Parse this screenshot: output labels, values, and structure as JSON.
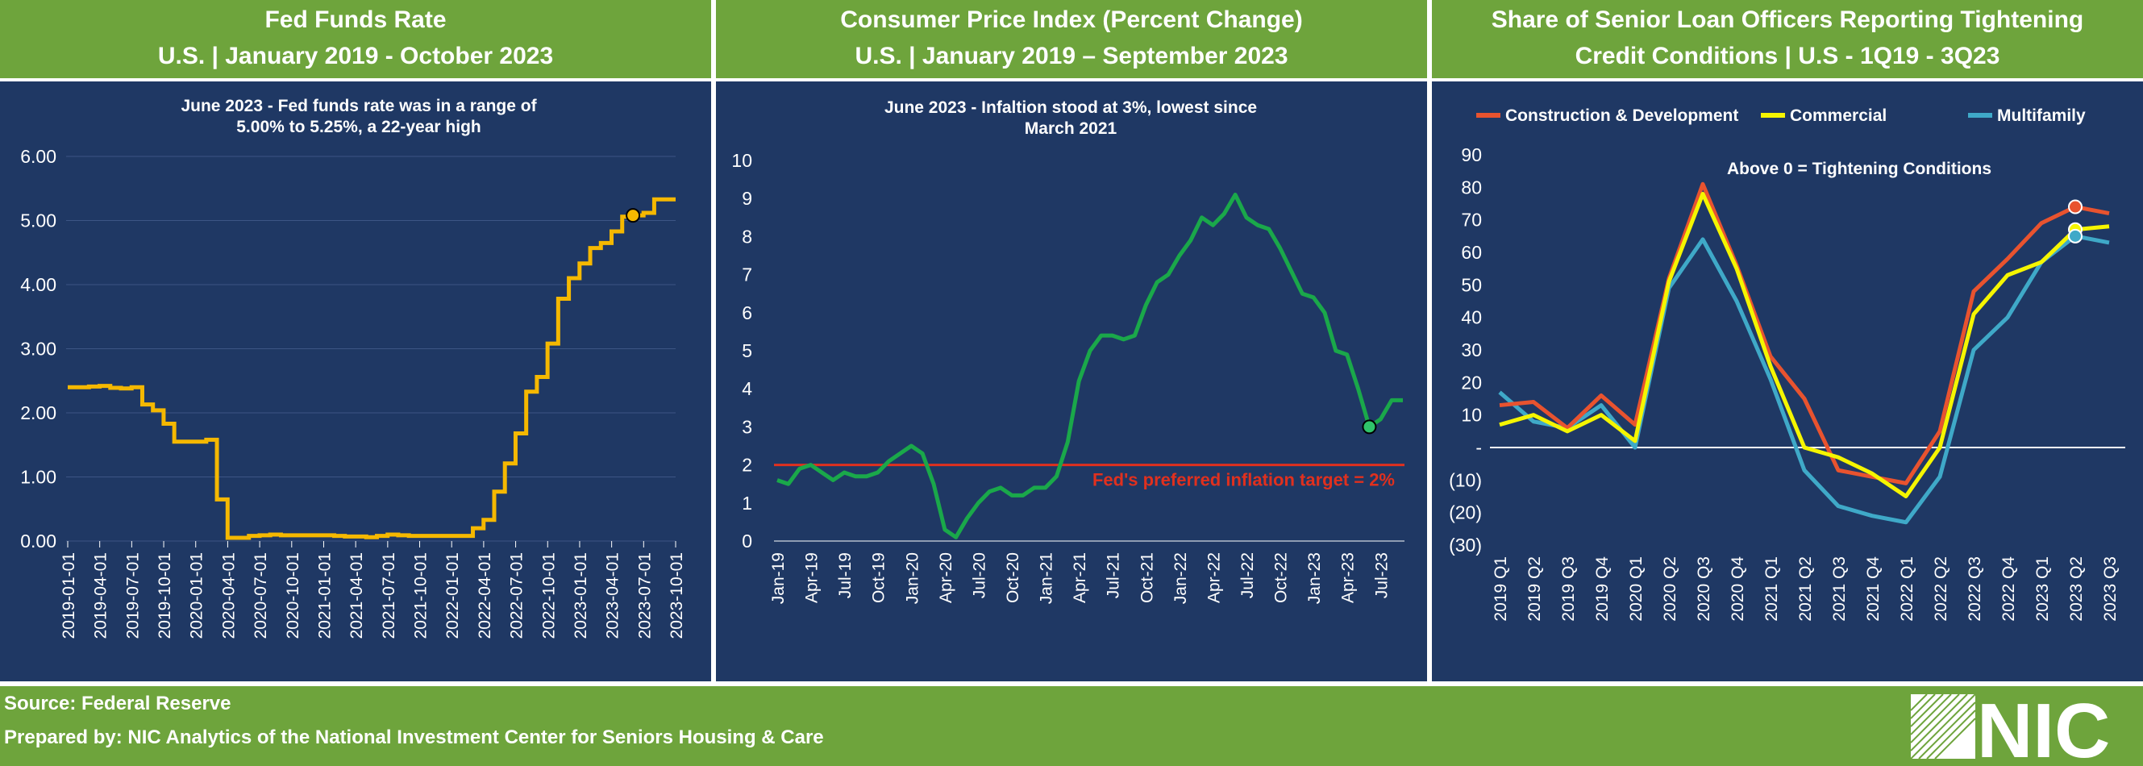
{
  "panels": [
    {
      "title_line1": "Fed Funds Rate",
      "title_line2": "U.S. | January 2019 - October 2023",
      "annotation": "June 2023 - Fed funds rate was in a range of 5.00% to 5.25%, a 22-year high"
    },
    {
      "title_line1": "Consumer Price Index (Percent Change)",
      "title_line2": "U.S. | January 2019 – September 2023",
      "annotation": "June 2023 - Infaltion stood at 3%, lowest since March 2021",
      "target_label": "Fed's preferred inflation target = 2%"
    },
    {
      "title_line1": "Share of Senior Loan Officers Reporting Tightening",
      "title_line2": "Credit Conditions | U.S - 1Q19 - 3Q23",
      "annotation": "Above 0 = Tightening Conditions"
    }
  ],
  "footer": {
    "source": "Source: Federal Reserve",
    "prepared_by": "Prepared by: NIC Analytics of the National Investment Center for Seniors Housing & Care",
    "logo_text": "NIC"
  },
  "chart_data": [
    {
      "type": "line",
      "series": [
        {
          "name": "",
          "color": "#f5b800",
          "x": [
            "2019-01",
            "2019-02",
            "2019-03",
            "2019-04",
            "2019-05",
            "2019-06",
            "2019-07",
            "2019-08",
            "2019-09",
            "2019-10",
            "2019-11",
            "2019-12",
            "2020-01",
            "2020-02",
            "2020-03",
            "2020-04",
            "2020-05",
            "2020-06",
            "2020-07",
            "2020-08",
            "2020-09",
            "2020-10",
            "2020-11",
            "2020-12",
            "2021-01",
            "2021-02",
            "2021-03",
            "2021-04",
            "2021-05",
            "2021-06",
            "2021-07",
            "2021-08",
            "2021-09",
            "2021-10",
            "2021-11",
            "2021-12",
            "2022-01",
            "2022-02",
            "2022-03",
            "2022-04",
            "2022-05",
            "2022-06",
            "2022-07",
            "2022-08",
            "2022-09",
            "2022-10",
            "2022-11",
            "2022-12",
            "2023-01",
            "2023-02",
            "2023-03",
            "2023-04",
            "2023-05",
            "2023-06",
            "2023-07",
            "2023-08",
            "2023-09",
            "2023-10"
          ],
          "values": [
            2.4,
            2.4,
            2.41,
            2.42,
            2.39,
            2.38,
            2.4,
            2.13,
            2.04,
            1.83,
            1.55,
            1.55,
            1.55,
            1.58,
            0.65,
            0.05,
            0.05,
            0.08,
            0.09,
            0.1,
            0.09,
            0.09,
            0.09,
            0.09,
            0.09,
            0.08,
            0.07,
            0.07,
            0.06,
            0.08,
            0.1,
            0.09,
            0.08,
            0.08,
            0.08,
            0.08,
            0.08,
            0.08,
            0.2,
            0.33,
            0.77,
            1.21,
            1.68,
            2.33,
            2.56,
            3.08,
            3.78,
            4.1,
            4.33,
            4.57,
            4.65,
            4.83,
            5.06,
            5.08,
            5.12,
            5.33,
            5.33,
            5.33
          ]
        }
      ],
      "x_ticks": [
        "2019-01-01",
        "2019-04-01",
        "2019-07-01",
        "2019-10-01",
        "2020-01-01",
        "2020-04-01",
        "2020-07-01",
        "2020-10-01",
        "2021-01-01",
        "2021-04-01",
        "2021-07-01",
        "2021-10-01",
        "2022-01-01",
        "2022-04-01",
        "2022-07-01",
        "2022-10-01",
        "2023-01-01",
        "2023-04-01",
        "2023-07-01",
        "2023-10-01"
      ],
      "y_ticks": [
        "0.00",
        "1.00",
        "2.00",
        "3.00",
        "4.00",
        "5.00",
        "6.00"
      ],
      "ylim": [
        0,
        6
      ],
      "highlight": {
        "x": "2023-06",
        "y": 5.08
      },
      "grid": true
    },
    {
      "type": "line",
      "series": [
        {
          "name": "",
          "color": "#1aa84a",
          "x": [
            "2019-01",
            "2019-02",
            "2019-03",
            "2019-04",
            "2019-05",
            "2019-06",
            "2019-07",
            "2019-08",
            "2019-09",
            "2019-10",
            "2019-11",
            "2019-12",
            "2020-01",
            "2020-02",
            "2020-03",
            "2020-04",
            "2020-05",
            "2020-06",
            "2020-07",
            "2020-08",
            "2020-09",
            "2020-10",
            "2020-11",
            "2020-12",
            "2021-01",
            "2021-02",
            "2021-03",
            "2021-04",
            "2021-05",
            "2021-06",
            "2021-07",
            "2021-08",
            "2021-09",
            "2021-10",
            "2021-11",
            "2021-12",
            "2022-01",
            "2022-02",
            "2022-03",
            "2022-04",
            "2022-05",
            "2022-06",
            "2022-07",
            "2022-08",
            "2022-09",
            "2022-10",
            "2022-11",
            "2022-12",
            "2023-01",
            "2023-02",
            "2023-03",
            "2023-04",
            "2023-05",
            "2023-06",
            "2023-07",
            "2023-08",
            "2023-09"
          ],
          "values": [
            1.6,
            1.5,
            1.9,
            2.0,
            1.8,
            1.6,
            1.8,
            1.7,
            1.7,
            1.8,
            2.1,
            2.3,
            2.5,
            2.3,
            1.5,
            0.3,
            0.1,
            0.6,
            1.0,
            1.3,
            1.4,
            1.2,
            1.2,
            1.4,
            1.4,
            1.7,
            2.6,
            4.2,
            5.0,
            5.4,
            5.4,
            5.3,
            5.4,
            6.2,
            6.8,
            7.0,
            7.5,
            7.9,
            8.5,
            8.3,
            8.6,
            9.1,
            8.5,
            8.3,
            8.2,
            7.7,
            7.1,
            6.5,
            6.4,
            6.0,
            5.0,
            4.9,
            4.0,
            3.0,
            3.2,
            3.7,
            3.7
          ]
        }
      ],
      "x_ticks": [
        "Jan-19",
        "Apr-19",
        "Jul-19",
        "Oct-19",
        "Jan-20",
        "Apr-20",
        "Jul-20",
        "Oct-20",
        "Jan-21",
        "Apr-21",
        "Jul-21",
        "Oct-21",
        "Jan-22",
        "Apr-22",
        "Jul-22",
        "Oct-22",
        "Jan-23",
        "Apr-23",
        "Jul-23"
      ],
      "y_ticks": [
        "0",
        "1",
        "2",
        "3",
        "4",
        "5",
        "6",
        "7",
        "8",
        "9",
        "10"
      ],
      "ylim": [
        0,
        10
      ],
      "target": 2,
      "target_color": "#e0301e",
      "highlight": {
        "x": "2023-06",
        "y": 3.0
      },
      "grid": true
    },
    {
      "type": "line",
      "categories": [
        "2019 Q1",
        "2019 Q2",
        "2019 Q3",
        "2019 Q4",
        "2020 Q1",
        "2020 Q2",
        "2020 Q3",
        "2020 Q4",
        "2021 Q1",
        "2021 Q2",
        "2021 Q3",
        "2021 Q4",
        "2022 Q1",
        "2022 Q2",
        "2022 Q3",
        "2022 Q4",
        "2023 Q1",
        "2023 Q2",
        "2023 Q3"
      ],
      "series": [
        {
          "name": "Construction & Development",
          "color": "#e8532f",
          "values": [
            13,
            14,
            6,
            16,
            7,
            52,
            81,
            56,
            28,
            15,
            -7,
            -9,
            -11,
            5,
            48,
            58,
            69,
            74,
            72
          ]
        },
        {
          "name": "Commercial",
          "color": "#f5f500",
          "values": [
            7,
            10,
            5,
            10,
            2,
            51,
            78,
            55,
            25,
            0,
            -3,
            -8,
            -15,
            0,
            41,
            53,
            57,
            67,
            68
          ]
        },
        {
          "name": "Multifamily",
          "color": "#3fa9c8",
          "values": [
            17,
            8,
            6,
            13,
            0,
            49,
            64,
            45,
            21,
            -7,
            -18,
            -21,
            -23,
            -9,
            30,
            40,
            57,
            65,
            63
          ]
        }
      ],
      "y_ticks": [
        "(30)",
        "(20)",
        "(10)",
        "-",
        "10",
        "20",
        "30",
        "40",
        "50",
        "60",
        "70",
        "80",
        "90"
      ],
      "ylim": [
        -30,
        90
      ],
      "highlight_index": 17,
      "grid": true,
      "legend_position": "top"
    }
  ]
}
